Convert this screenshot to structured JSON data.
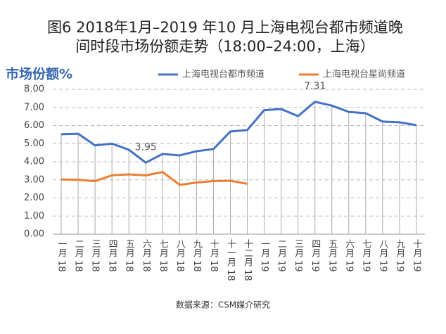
{
  "chart_data": {
    "type": "line",
    "title": "图6  2018年1月–2019 年10 月上海电视台都市频道晚间时段市场份额走势（18:00–24:00，上海）",
    "y_label": "市场份额%",
    "source": "数据来源：CSM媒介研究",
    "categories": [
      "一月 18",
      "二月 18",
      "三月 18",
      "四月 18",
      "五月 18",
      "六月 18",
      "七月 18",
      "八月 18",
      "九月 18",
      "十月 18",
      "十一月 18",
      "十二月 18",
      "一月 19",
      "二月 19",
      "三月 19",
      "四月 19",
      "五月 19",
      "六月 19",
      "七月 19",
      "八月 19",
      "九月 19",
      "十月 19"
    ],
    "series": [
      {
        "name": "上海电视台都市频道",
        "color": "#4472c4",
        "values": [
          5.52,
          5.55,
          4.9,
          5.0,
          4.66,
          3.95,
          4.43,
          4.35,
          4.58,
          4.7,
          5.67,
          5.75,
          6.85,
          6.91,
          6.52,
          7.31,
          7.1,
          6.75,
          6.68,
          6.22,
          6.18,
          6.02
        ],
        "value_labels": [
          null,
          null,
          null,
          null,
          null,
          "3.95",
          null,
          null,
          null,
          null,
          null,
          null,
          null,
          null,
          null,
          "7.31",
          null,
          null,
          null,
          null,
          null,
          null
        ]
      },
      {
        "name": "上海电视台星尚频道",
        "color": "#ed7d31",
        "values": [
          3.02,
          3.0,
          2.93,
          3.25,
          3.3,
          3.25,
          3.43,
          2.72,
          2.85,
          2.93,
          2.95,
          2.78,
          null,
          null,
          null,
          null,
          null,
          null,
          null,
          null,
          null,
          null
        ]
      }
    ],
    "ylim": [
      0,
      8
    ],
    "yticks": [
      {
        "value": 0,
        "label": "0.00"
      },
      {
        "value": 1,
        "label": "1.00"
      },
      {
        "value": 2,
        "label": "2.00"
      },
      {
        "value": 3,
        "label": "3.00"
      },
      {
        "value": 4,
        "label": "4.00"
      },
      {
        "value": 5,
        "label": "5.00"
      },
      {
        "value": 6,
        "label": "6.00"
      },
      {
        "value": 7,
        "label": "7.00"
      },
      {
        "value": 8,
        "label": "8.00"
      }
    ],
    "grid": true,
    "legend": "top"
  }
}
